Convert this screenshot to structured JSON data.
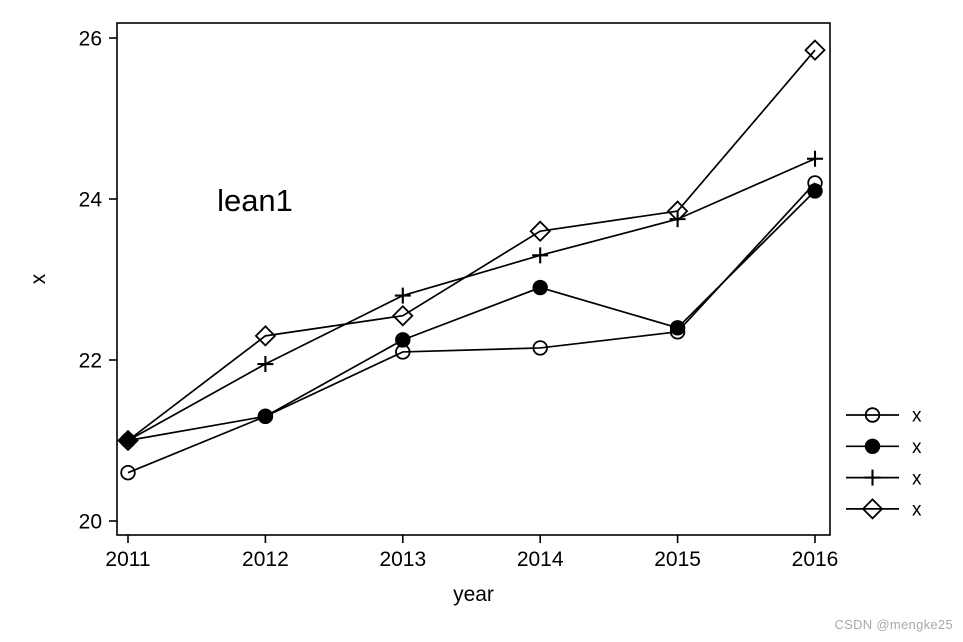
{
  "chart_data": {
    "type": "line",
    "title": "",
    "xlabel": "year",
    "ylabel": "x",
    "annotation": {
      "text": "lean1",
      "color": "#ff0000"
    },
    "x": [
      2011,
      2012,
      2013,
      2014,
      2015,
      2016
    ],
    "xticks": [
      2011,
      2012,
      2013,
      2014,
      2015,
      2016
    ],
    "yticks": [
      20,
      22,
      24,
      26
    ],
    "xlim": [
      2010.9,
      2016.1
    ],
    "ylim": [
      19.8,
      26.2
    ],
    "grid": false,
    "legend_position": "right-outside",
    "line_color": "#000000",
    "series": [
      {
        "name": "x",
        "marker": "circle-open",
        "values": [
          20.6,
          21.3,
          22.1,
          22.15,
          22.35,
          24.2
        ]
      },
      {
        "name": "x",
        "marker": "circle-filled",
        "values": [
          21.0,
          21.3,
          22.25,
          22.9,
          22.4,
          24.1
        ]
      },
      {
        "name": "x",
        "marker": "plus",
        "values": [
          21.0,
          21.95,
          22.8,
          23.3,
          23.75,
          24.5
        ]
      },
      {
        "name": "x",
        "marker": "diamond-open",
        "values": [
          21.0,
          22.3,
          22.55,
          23.6,
          23.85,
          25.85
        ]
      }
    ]
  },
  "watermark": "CSDN @mengke25"
}
